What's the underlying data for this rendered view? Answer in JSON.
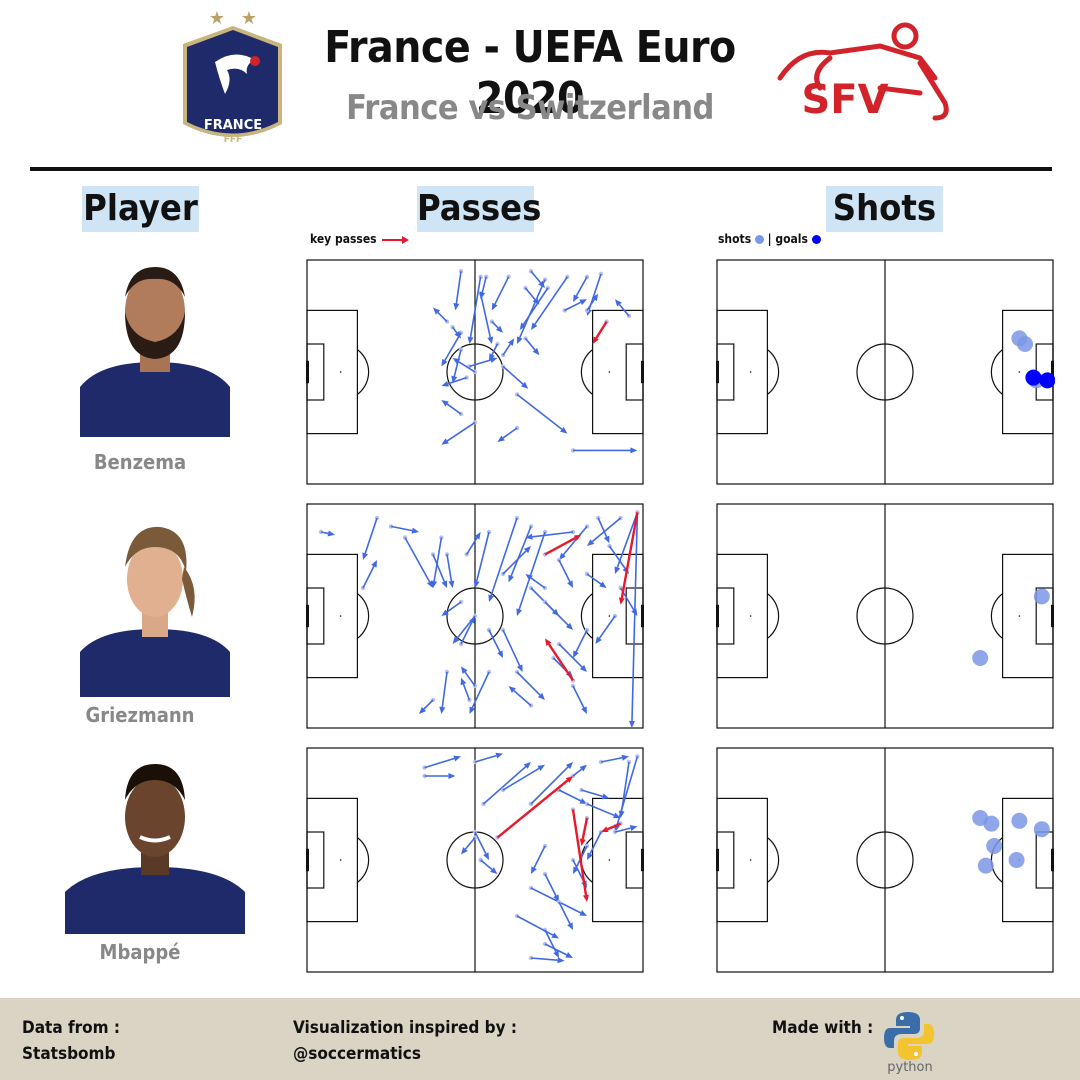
{
  "header": {
    "title": "France - UEFA Euro 2020",
    "subtitle": "France vs Switzerland",
    "france_logo_text": "FRANCE",
    "france_logo_sub": "FFF",
    "swiss_logo_text": "SFV"
  },
  "columns": {
    "player": "Player",
    "passes": "Passes",
    "shots": "Shots"
  },
  "legend": {
    "key_passes": "key passes",
    "shots": "shots",
    "separator": "|",
    "goals": "goals"
  },
  "colors": {
    "pass": "#4169e1",
    "key_pass": "#e8192c",
    "shot": "#7b96e8",
    "goal": "#0000ff",
    "header_box": "#cfe4f5",
    "footer": "#d9d4c4",
    "france_blue": "#1f2a6b",
    "swiss_red": "#d2232a"
  },
  "players": [
    {
      "name": "Benzema",
      "photo_icon": "player-photo-icon"
    },
    {
      "name": "Griezmann",
      "photo_icon": "player-photo-icon"
    },
    {
      "name": "Mbappé",
      "photo_icon": "player-photo-icon"
    }
  ],
  "chart_data": {
    "type": "scatter",
    "description_units": "StatsBomb pitch coordinates (x 0-120, y 0-80)",
    "x_range": [
      0,
      120
    ],
    "y_range": [
      0,
      80
    ],
    "players": [
      {
        "name": "Benzema",
        "passes": [
          [
            55,
            4,
            53,
            18
          ],
          [
            62,
            6,
            58,
            30
          ],
          [
            72,
            6,
            66,
            18
          ],
          [
            85,
            7,
            75,
            30
          ],
          [
            93,
            6,
            80,
            25
          ],
          [
            100,
            6,
            95,
            15
          ],
          [
            105,
            5,
            100,
            20
          ],
          [
            86,
            10,
            76,
            25
          ],
          [
            62,
            12,
            66,
            30
          ],
          [
            50,
            22,
            45,
            17
          ],
          [
            55,
            26,
            48,
            38
          ],
          [
            58,
            38,
            68,
            35
          ],
          [
            55,
            32,
            52,
            44
          ],
          [
            60,
            40,
            52,
            35
          ],
          [
            57,
            42,
            48,
            45
          ],
          [
            70,
            38,
            79,
            46
          ],
          [
            68,
            30,
            65,
            36
          ],
          [
            75,
            48,
            93,
            62
          ],
          [
            55,
            55,
            48,
            50
          ],
          [
            60,
            58,
            48,
            66
          ],
          [
            75,
            60,
            68,
            65
          ],
          [
            95,
            68,
            118,
            68
          ],
          [
            78,
            28,
            83,
            34
          ],
          [
            70,
            34,
            74,
            28
          ],
          [
            92,
            18,
            100,
            14
          ],
          [
            100,
            18,
            104,
            12
          ],
          [
            115,
            20,
            110,
            14
          ],
          [
            78,
            10,
            83,
            16
          ],
          [
            66,
            22,
            70,
            26
          ],
          [
            64,
            6,
            62,
            14
          ],
          [
            52,
            24,
            55,
            28
          ],
          [
            80,
            4,
            85,
            10
          ]
        ],
        "key_passes": [
          [
            107,
            22,
            102,
            30
          ]
        ],
        "shots": [
          [
            110,
            30
          ],
          [
            108,
            28
          ],
          [
            113,
            42
          ],
          [
            114,
            43
          ]
        ],
        "goals": [
          [
            113,
            42
          ],
          [
            118,
            43
          ]
        ]
      },
      {
        "name": "Griezmann",
        "passes": [
          [
            5,
            10,
            10,
            11
          ],
          [
            25,
            5,
            20,
            20
          ],
          [
            30,
            8,
            40,
            10
          ],
          [
            35,
            12,
            45,
            30
          ],
          [
            48,
            12,
            45,
            30
          ],
          [
            45,
            18,
            50,
            30
          ],
          [
            50,
            18,
            52,
            30
          ],
          [
            57,
            18,
            62,
            10
          ],
          [
            65,
            10,
            60,
            30
          ],
          [
            75,
            5,
            65,
            35
          ],
          [
            80,
            8,
            72,
            28
          ],
          [
            85,
            10,
            75,
            40
          ],
          [
            95,
            10,
            78,
            12
          ],
          [
            100,
            8,
            90,
            20
          ],
          [
            112,
            5,
            100,
            15
          ],
          [
            118,
            3,
            110,
            25
          ],
          [
            70,
            25,
            80,
            15
          ],
          [
            80,
            30,
            90,
            40
          ],
          [
            85,
            35,
            95,
            45
          ],
          [
            90,
            50,
            100,
            60
          ],
          [
            100,
            45,
            95,
            55
          ],
          [
            110,
            40,
            103,
            50
          ],
          [
            118,
            3,
            116,
            80
          ],
          [
            55,
            35,
            48,
            40
          ],
          [
            60,
            40,
            52,
            50
          ],
          [
            65,
            60,
            58,
            75
          ],
          [
            70,
            45,
            77,
            60
          ],
          [
            75,
            60,
            85,
            70
          ],
          [
            80,
            72,
            72,
            65
          ],
          [
            95,
            65,
            100,
            75
          ],
          [
            85,
            30,
            78,
            25
          ],
          [
            90,
            20,
            95,
            30
          ],
          [
            100,
            25,
            107,
            30
          ],
          [
            108,
            15,
            115,
            25
          ],
          [
            60,
            65,
            55,
            58
          ],
          [
            50,
            60,
            48,
            75
          ],
          [
            45,
            70,
            40,
            75
          ],
          [
            58,
            70,
            55,
            62
          ],
          [
            65,
            45,
            70,
            55
          ],
          [
            88,
            55,
            95,
            62
          ],
          [
            104,
            5,
            108,
            14
          ],
          [
            112,
            30,
            118,
            40
          ],
          [
            20,
            30,
            25,
            20
          ],
          [
            55,
            50,
            60,
            40
          ]
        ],
        "key_passes": [
          [
            118,
            3,
            112,
            36
          ],
          [
            85,
            18,
            98,
            11
          ],
          [
            95,
            63,
            85,
            48
          ]
        ],
        "shots": [
          [
            116,
            33
          ],
          [
            94,
            55
          ]
        ],
        "goals": []
      },
      {
        "name": "Mbappé",
        "passes": [
          [
            42,
            7,
            55,
            3
          ],
          [
            42,
            10,
            53,
            10
          ],
          [
            60,
            5,
            70,
            2
          ],
          [
            63,
            20,
            80,
            5
          ],
          [
            70,
            15,
            85,
            6
          ],
          [
            80,
            20,
            95,
            5
          ],
          [
            90,
            15,
            100,
            20
          ],
          [
            95,
            10,
            100,
            6
          ],
          [
            105,
            5,
            115,
            3
          ],
          [
            118,
            3,
            110,
            30
          ],
          [
            115,
            5,
            112,
            25
          ],
          [
            100,
            20,
            112,
            25
          ],
          [
            105,
            30,
            100,
            40
          ],
          [
            95,
            40,
            100,
            50
          ],
          [
            85,
            45,
            90,
            55
          ],
          [
            80,
            50,
            100,
            60
          ],
          [
            90,
            55,
            95,
            65
          ],
          [
            85,
            65,
            90,
            75
          ],
          [
            85,
            70,
            95,
            75
          ],
          [
            80,
            75,
            92,
            76
          ],
          [
            60,
            30,
            65,
            40
          ],
          [
            62,
            40,
            68,
            45
          ],
          [
            60,
            32,
            55,
            38
          ],
          [
            85,
            35,
            80,
            45
          ],
          [
            100,
            35,
            95,
            45
          ],
          [
            110,
            30,
            118,
            28
          ],
          [
            98,
            15,
            108,
            18
          ],
          [
            75,
            60,
            90,
            68
          ]
        ],
        "key_passes": [
          [
            68,
            32,
            95,
            10
          ],
          [
            95,
            22,
            100,
            55
          ],
          [
            112,
            27,
            105,
            30
          ],
          [
            100,
            25,
            98,
            35
          ]
        ],
        "shots": [
          [
            94,
            25
          ],
          [
            98,
            27
          ],
          [
            108,
            26
          ],
          [
            116,
            29
          ],
          [
            99,
            35
          ],
          [
            96,
            42
          ],
          [
            107,
            40
          ]
        ],
        "goals": []
      }
    ]
  },
  "footer": {
    "data_label": "Data from :",
    "data_value": "Statsbomb",
    "inspired_label": "Visualization inspired by  :",
    "inspired_value": "@soccermatics",
    "made_label": "Made with :",
    "made_value": "python"
  }
}
